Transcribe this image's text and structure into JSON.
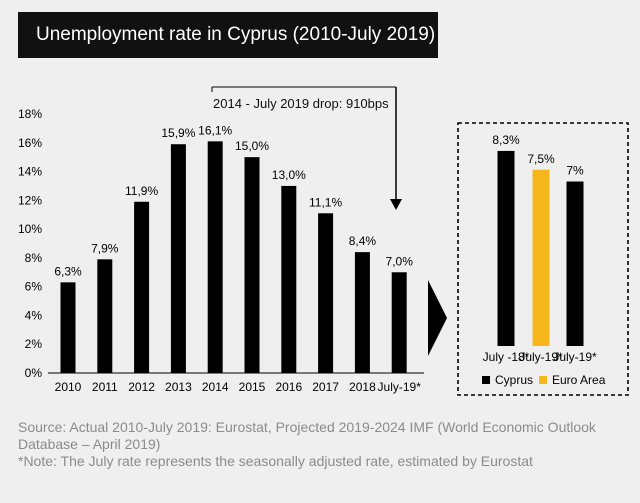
{
  "title": "Unemployment rate in Cyprus (2010-July 2019)",
  "footer": {
    "source": "Source: Actual 2010-July 2019: Eurostat, Projected 2019-2024 IMF (World Economic Outlook Database – April 2019)",
    "note": "*Note: The July rate represents the seasonally adjusted rate, estimated by Eurostat"
  },
  "colors": {
    "bar": "#000000",
    "euro": "#f6b71c",
    "background": "#efefef"
  },
  "icons": {
    "arrow": "down-arrow-icon",
    "chevron": "chevron-right-icon"
  },
  "chart_data": [
    {
      "type": "bar",
      "categories": [
        "2010",
        "2011",
        "2012",
        "2013",
        "2014",
        "2015",
        "2016",
        "2017",
        "2018",
        "July-19*"
      ],
      "values": [
        6.3,
        7.9,
        11.9,
        15.9,
        16.1,
        15.0,
        13.0,
        11.1,
        8.4,
        7.0
      ],
      "value_labels": [
        "6,3%",
        "7,9%",
        "11,9%",
        "15,9%",
        "16,1%",
        "15,0%",
        "13,0%",
        "11,1%",
        "8,4%",
        "7,0%"
      ],
      "ylim": [
        0,
        18
      ],
      "y_ticks": [
        0,
        2,
        4,
        6,
        8,
        10,
        12,
        14,
        16,
        18
      ],
      "y_tick_labels": [
        "0%",
        "2%",
        "4%",
        "6%",
        "8%",
        "10%",
        "12%",
        "14%",
        "16%",
        "18%"
      ],
      "grid": false,
      "annotation": "2014 - July 2019 drop: 910bps"
    },
    {
      "type": "bar",
      "categories": [
        "July -18*",
        "July-19*",
        "July-19*"
      ],
      "values": [
        8.3,
        7.5,
        7.0
      ],
      "value_labels": [
        "8,3%",
        "7,5%",
        "7%"
      ],
      "series_of_bar": [
        "Cyprus",
        "Euro Area",
        "Cyprus"
      ],
      "legend": [
        {
          "name": "Cyprus",
          "color": "#000000"
        },
        {
          "name": "Euro Area",
          "color": "#f6b71c"
        }
      ],
      "legend_position": "bottom"
    }
  ]
}
